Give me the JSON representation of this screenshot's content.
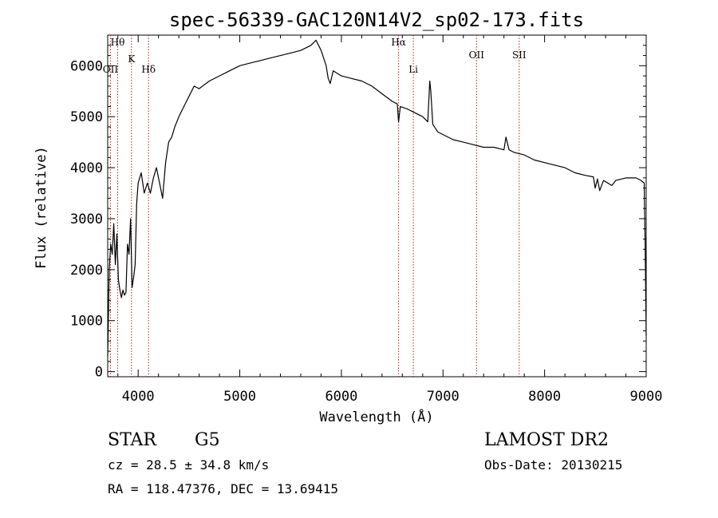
{
  "chart_data": {
    "type": "line",
    "title": "spec-56339-GAC120N14V2_sp02-173.fits",
    "xlabel": "Wavelength (Å)",
    "ylabel": "Flux (relative)",
    "xlim": [
      3700,
      9000
    ],
    "ylim": [
      -100,
      6600
    ],
    "xticks": [
      4000,
      5000,
      6000,
      7000,
      8000,
      9000
    ],
    "yticks": [
      0,
      1000,
      2000,
      3000,
      4000,
      5000,
      6000
    ],
    "grid": false,
    "lines": [
      {
        "label": "Hθ",
        "x": 3798
      },
      {
        "label": "OII",
        "x": 3727
      },
      {
        "label": "K",
        "x": 3934
      },
      {
        "label": "Hδ",
        "x": 4102
      },
      {
        "label": "Hα",
        "x": 6563
      },
      {
        "label": "Li",
        "x": 6708
      },
      {
        "label": "OII",
        "x": 7330
      },
      {
        "label": "SII",
        "x": 7750
      }
    ],
    "series": [
      {
        "x": [
          3700,
          3715,
          3730,
          3745,
          3760,
          3775,
          3790,
          3805,
          3820,
          3835,
          3850,
          3865,
          3880,
          3895,
          3910,
          3925,
          3940,
          3955,
          3970,
          3985,
          4000,
          4030,
          4060,
          4090,
          4120,
          4150,
          4180,
          4210,
          4240,
          4270,
          4300,
          4330,
          4360,
          4400,
          4450,
          4500,
          4550,
          4600,
          4700,
          4800,
          4900,
          5000,
          5100,
          5200,
          5300,
          5400,
          5500,
          5600,
          5700,
          5750,
          5800,
          5850,
          5870,
          5890,
          5920,
          6000,
          6100,
          6200,
          6300,
          6400,
          6500,
          6550,
          6563,
          6580,
          6650,
          6700,
          6800,
          6850,
          6870,
          6880,
          6900,
          6950,
          7000,
          7100,
          7200,
          7300,
          7400,
          7500,
          7600,
          7620,
          7650,
          7700,
          7800,
          7900,
          8000,
          8100,
          8200,
          8300,
          8400,
          8480,
          8498,
          8520,
          8542,
          8580,
          8662,
          8700,
          8800,
          8900,
          8950,
          8980,
          8990,
          9000
        ],
        "y": [
          300,
          2000,
          2500,
          2300,
          2900,
          2100,
          2700,
          1800,
          1600,
          1450,
          1600,
          1500,
          1550,
          2500,
          2300,
          3000,
          1650,
          1850,
          2100,
          3300,
          3700,
          3900,
          3500,
          3700,
          3500,
          3800,
          4000,
          3700,
          3400,
          4100,
          4500,
          4600,
          4800,
          5000,
          5200,
          5400,
          5600,
          5550,
          5700,
          5800,
          5900,
          6000,
          6050,
          6100,
          6150,
          6200,
          6250,
          6300,
          6400,
          6500,
          6300,
          6000,
          5750,
          5650,
          5900,
          5800,
          5750,
          5700,
          5600,
          5450,
          5300,
          5250,
          4900,
          5200,
          5150,
          5100,
          5000,
          4900,
          5700,
          5500,
          4850,
          4700,
          4650,
          4550,
          4500,
          4450,
          4400,
          4400,
          4350,
          4600,
          4350,
          4300,
          4250,
          4150,
          4100,
          4050,
          4000,
          3900,
          3850,
          3820,
          3600,
          3780,
          3550,
          3750,
          3650,
          3750,
          3800,
          3800,
          3750,
          3700,
          2500,
          700
        ]
      }
    ]
  },
  "footer": {
    "object_class": "STAR",
    "subclass": "G5",
    "survey": "LAMOST DR2",
    "cz": "cz = 28.5 ± 34.8 km/s",
    "obs_date": "Obs-Date: 20130215",
    "coords": "RA = 118.47376, DEC =  13.69415"
  },
  "colors": {
    "line": "#000000",
    "marker": "#b22222"
  }
}
